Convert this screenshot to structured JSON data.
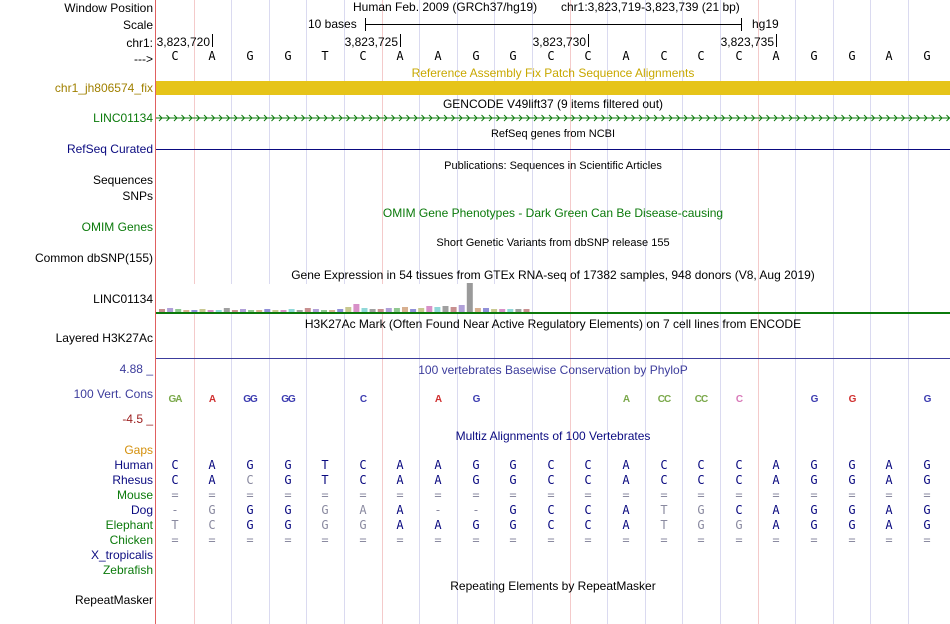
{
  "colors": {
    "fix_patch": "#e6c419",
    "gene_green": "#0b7a0b",
    "refseq_navy": "#0a0a80",
    "cons_blue": "#3c3c9c",
    "cons_red": "#9c2020",
    "gaps_orange": "#d4900c"
  },
  "header": {
    "window_position_label": "Window Position",
    "scale_label": "Scale",
    "chr_label": "chr1:",
    "arrow_label": "--->",
    "assembly": "Human Feb. 2009 (GRCh37/hg19)",
    "position": "chr1:3,823,719-3,823,739 (21 bp)",
    "scale_text": "10 bases",
    "db": "hg19",
    "coord_ticks": [
      "3,823,720",
      "3,823,725",
      "3,823,730",
      "3,823,735"
    ],
    "sequence": [
      "C",
      "A",
      "G",
      "G",
      "T",
      "C",
      "A",
      "A",
      "G",
      "G",
      "C",
      "C",
      "A",
      "C",
      "C",
      "C",
      "A",
      "G",
      "G",
      "A",
      "G"
    ]
  },
  "tracks": {
    "fix_patch": {
      "title": "Reference Assembly Fix Patch Sequence Alignments",
      "label": "chr1_jh806574_fix"
    },
    "gencode": {
      "title": "GENCODE V49lift37 (9 items filtered out)",
      "label": "LINC01134"
    },
    "refseq": {
      "title": "RefSeq genes from NCBI",
      "label": "RefSeq Curated"
    },
    "publications": {
      "title": "Publications: Sequences in Scientific Articles",
      "label_sequences": "Sequences",
      "label_snps": "SNPs"
    },
    "omim": {
      "title": "OMIM Gene Phenotypes - Dark Green Can Be Disease-causing",
      "label": "OMIM Genes"
    },
    "dbsnp": {
      "title": "Short Genetic Variants from dbSNP release 155",
      "label": "Common dbSNP(155)"
    },
    "gtex": {
      "title": "Gene Expression in 54 tissues from GTEx RNA-seq of 17382 samples, 948 donors (V8, Aug 2019)",
      "label": "LINC01134"
    },
    "h3k27ac": {
      "title": "H3K27Ac Mark (Often Found Near Active Regulatory Elements) on 7 cell lines from ENCODE",
      "label": "Layered H3K27Ac"
    },
    "phylop": {
      "title": "100 vertebrates Basewise Conservation by PhyloP",
      "label": "100 Vert. Cons",
      "max": "4.88 _",
      "min": "-4.5 _",
      "logos": [
        {
          "bases": "GA",
          "tone": "green"
        },
        {
          "bases": "A",
          "tone": "red"
        },
        {
          "bases": "GG",
          "tone": "blue"
        },
        {
          "bases": "GG",
          "tone": "blue"
        },
        {
          "bases": "",
          "tone": ""
        },
        {
          "bases": "C",
          "tone": "blue"
        },
        {
          "bases": "",
          "tone": ""
        },
        {
          "bases": "A",
          "tone": "red"
        },
        {
          "bases": "G",
          "tone": "blue"
        },
        {
          "bases": "",
          "tone": ""
        },
        {
          "bases": "",
          "tone": ""
        },
        {
          "bases": "",
          "tone": ""
        },
        {
          "bases": "A",
          "tone": "green"
        },
        {
          "bases": "CC",
          "tone": "green"
        },
        {
          "bases": "CC",
          "tone": "green"
        },
        {
          "bases": "C",
          "tone": "pink"
        },
        {
          "bases": "",
          "tone": ""
        },
        {
          "bases": "G",
          "tone": "blue"
        },
        {
          "bases": "G",
          "tone": "red"
        },
        {
          "bases": "",
          "tone": ""
        },
        {
          "bases": "G",
          "tone": "blue"
        }
      ]
    },
    "multiz": {
      "title": "Multiz Alignments of 100 Vertebrates",
      "gaps_label": "Gaps",
      "species": [
        {
          "name": "Human",
          "color": "#0a0a80",
          "row": [
            "C",
            "A",
            "G",
            "G",
            "T",
            "C",
            "A",
            "A",
            "G",
            "G",
            "C",
            "C",
            "A",
            "C",
            "C",
            "C",
            "A",
            "G",
            "G",
            "A",
            "G"
          ],
          "tone": "dark"
        },
        {
          "name": "Rhesus",
          "color": "#0a0a80",
          "row": [
            "C",
            "A",
            "C",
            "G",
            "T",
            "C",
            "A",
            "A",
            "G",
            "G",
            "C",
            "C",
            "A",
            "C",
            "C",
            "C",
            "A",
            "G",
            "G",
            "A",
            "G"
          ],
          "tone": "dark"
        },
        {
          "name": "Mouse",
          "color": "#0b7a0b",
          "row": [
            "=",
            "=",
            "=",
            "=",
            "=",
            "=",
            "=",
            "=",
            "=",
            "=",
            "=",
            "=",
            "=",
            "=",
            "=",
            "=",
            "=",
            "=",
            "=",
            "=",
            "="
          ],
          "tone": "light"
        },
        {
          "name": "Dog",
          "color": "#0a0a80",
          "row": [
            "-",
            "G",
            "G",
            "G",
            "G",
            "A",
            "A",
            "-",
            "-",
            "G",
            "C",
            "C",
            "A",
            "T",
            "G",
            "C",
            "A",
            "G",
            "G",
            "A",
            "G"
          ],
          "tone": "dark"
        },
        {
          "name": "Elephant",
          "color": "#0b7a0b",
          "row": [
            "T",
            "C",
            "G",
            "G",
            "G",
            "G",
            "A",
            "A",
            "G",
            "G",
            "C",
            "C",
            "A",
            "T",
            "G",
            "G",
            "A",
            "G",
            "G",
            "A",
            "G"
          ],
          "tone": "dark"
        },
        {
          "name": "Chicken",
          "color": "#0b7a0b",
          "row": [
            "=",
            "=",
            "=",
            "=",
            "=",
            "=",
            "=",
            "=",
            "=",
            "=",
            "=",
            "=",
            "=",
            "=",
            "=",
            "=",
            "=",
            "=",
            "=",
            "=",
            "="
          ],
          "tone": "light"
        },
        {
          "name": "X_tropicalis",
          "color": "#0a0a80",
          "row": [],
          "tone": "light"
        },
        {
          "name": "Zebrafish",
          "color": "#0b7a0b",
          "row": [],
          "tone": "light"
        }
      ]
    },
    "repeatmasker": {
      "title": "Repeating Elements by RepeatMasker",
      "label": "RepeatMasker"
    }
  }
}
